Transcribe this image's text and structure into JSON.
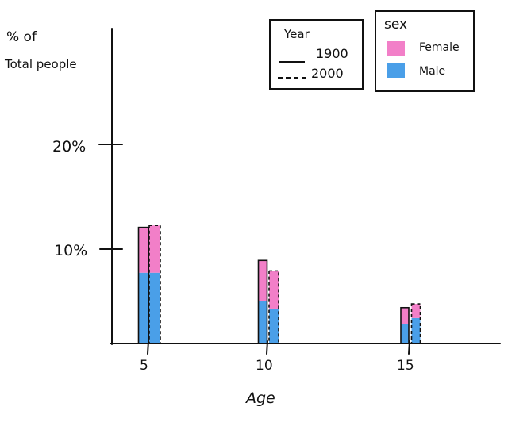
{
  "chart_data": {
    "type": "bar",
    "title": "",
    "ylabel_line1": "% of",
    "ylabel_line2": "Total people",
    "xlabel": "Age",
    "categories": [
      "5",
      "10",
      "15"
    ],
    "yticks": [
      "10%",
      "20%"
    ],
    "ylim": [
      0,
      30
    ],
    "stacked": true,
    "groups": [
      "1900",
      "2000"
    ],
    "series": [
      {
        "name": "Male",
        "color": "#4a9fe8",
        "values": {
          "1900": [
            7.5,
            4.5,
            2.1
          ],
          "2000": [
            7.5,
            3.7,
            2.7
          ]
        }
      },
      {
        "name": "Female",
        "color": "#f27fc8",
        "values": {
          "1900": [
            4.8,
            4.3,
            1.7
          ],
          "2000": [
            5.0,
            4.0,
            1.5
          ]
        }
      }
    ],
    "legend_year": {
      "title": "Year",
      "entries": [
        {
          "label": "1900",
          "style": "solid"
        },
        {
          "label": "2000",
          "style": "dashed"
        }
      ]
    },
    "legend_sex": {
      "title": "sex",
      "entries": [
        {
          "label": "Female",
          "color": "#f27fc8"
        },
        {
          "label": "Male",
          "color": "#4a9fe8"
        }
      ]
    },
    "legend_placement": "top-right",
    "grid": false
  }
}
